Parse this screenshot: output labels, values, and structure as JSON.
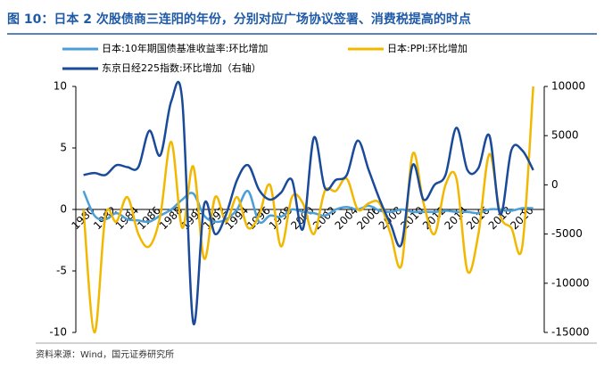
{
  "chart_data": {
    "type": "line",
    "title": "图 10：日本 2 次股债商三连阳的年份，分别对应广场协议签署、消费税提高的时点",
    "source": "资料来源：Wind，国元证券研究所",
    "x": [
      1980,
      1981,
      1982,
      1983,
      1984,
      1985,
      1986,
      1987,
      1988,
      1989,
      1990,
      1991,
      1992,
      1993,
      1994,
      1995,
      1996,
      1997,
      1998,
      1999,
      2000,
      2001,
      2002,
      2003,
      2004,
      2005,
      2006,
      2007,
      2008,
      2009,
      2010,
      2011,
      2012,
      2013,
      2014,
      2015,
      2016,
      2017,
      2018,
      2019,
      2020,
      2021
    ],
    "series": [
      {
        "name": "日本:10年期国债基准收益率:环比增加",
        "color": "#4a9fd8",
        "axis": "y",
        "values": [
          1.5,
          -0.5,
          -0.8,
          -0.3,
          -0.8,
          -0.9,
          -1.0,
          -0.5,
          0.0,
          0.8,
          1.3,
          -0.5,
          -1.0,
          -0.8,
          0.0,
          1.5,
          -1.0,
          -0.5,
          -0.6,
          0.0,
          -0.2,
          -0.3,
          -0.5,
          0.0,
          0.2,
          0.0,
          0.3,
          -0.1,
          -0.2,
          0.0,
          -0.2,
          -0.2,
          -0.2,
          -0.1,
          -0.2,
          -0.2,
          -0.3,
          0.0,
          0.0,
          -0.1,
          0.1,
          0.1
        ]
      },
      {
        "name": "日本:PPI:环比增加",
        "color": "#f2b800",
        "axis": "y",
        "values": [
          0,
          -10,
          -0.5,
          -1.0,
          1.0,
          -2.0,
          -3.0,
          -0.5,
          5.5,
          -1.5,
          3.5,
          -4.0,
          1.0,
          -1.0,
          1.0,
          -1.5,
          -0.5,
          2.0,
          -3.0,
          1.0,
          0.5,
          -2.0,
          1.5,
          1.5,
          2.5,
          0.0,
          0.5,
          0.5,
          -2.0,
          -4.5,
          4.5,
          0.5,
          -2.0,
          2.0,
          2.5,
          -5.0,
          -2.0,
          4.5,
          -0.5,
          -1.5,
          -3.0,
          10.0
        ]
      },
      {
        "name": "东京日经225指数:环比增加（右轴）",
        "color": "#1a4a9a",
        "axis": "y2",
        "values": [
          1000,
          1200,
          1000,
          2000,
          1800,
          1800,
          5500,
          3000,
          8500,
          8600,
          -14000,
          -2000,
          -5000,
          -3000,
          500,
          2000,
          -500,
          -1500,
          -800,
          500,
          -4500,
          4800,
          -300,
          500,
          1000,
          4500,
          1500,
          -1500,
          -4000,
          -6000,
          2000,
          -1500,
          0,
          1000,
          5800,
          1500,
          1700,
          5000,
          -3000,
          3500,
          3500,
          1500
        ]
      }
    ],
    "xlim": [
      1979.3,
      2022
    ],
    "xticks": [
      1980,
      1982,
      1984,
      1986,
      1988,
      1990,
      1992,
      1994,
      1996,
      1998,
      2000,
      2002,
      2004,
      2006,
      2008,
      2010,
      2012,
      2014,
      2016,
      2018,
      2020
    ],
    "ylim": [
      -10,
      10
    ],
    "yticks": [
      10,
      5,
      0,
      -5,
      -10
    ],
    "y2lim": [
      -15000,
      10000
    ],
    "y2ticks": [
      10000,
      5000,
      0,
      -5000,
      -10000,
      -15000
    ],
    "negative_tick_color": "#e00000",
    "legend": "top"
  }
}
